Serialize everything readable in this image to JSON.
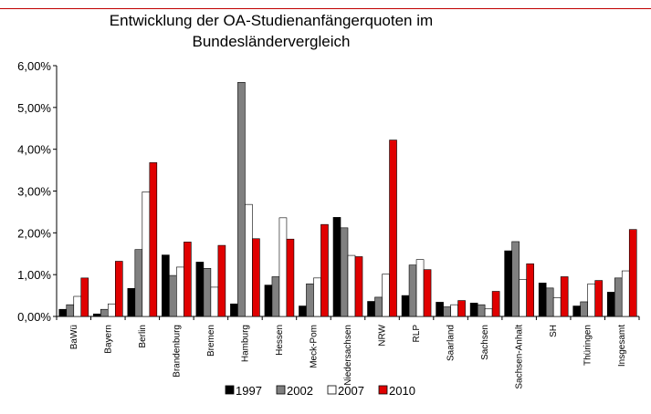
{
  "chart_data": {
    "type": "bar",
    "title": "Entwicklung der OA-Studienanfängerquoten im Bundesländervergleich",
    "title_lines": [
      "Entwicklung der OA-Studienanfängerquoten im",
      "Bundesländervergleich"
    ],
    "categories": [
      "BaWü",
      "Bayern",
      "Berlin",
      "Brandenburg",
      "Bremen",
      "Hamburg",
      "Hessen",
      "Meck-Pom",
      "Niedersachsen",
      "NRW",
      "RLP",
      "Saarland",
      "Sachsen",
      "Sachsen-Anhalt",
      "SH",
      "Thüringen",
      "Insgesamt"
    ],
    "series": [
      {
        "name": "1997",
        "color": "#000000",
        "values": [
          0.17,
          0.06,
          0.67,
          1.47,
          1.3,
          0.3,
          0.75,
          0.25,
          2.37,
          0.36,
          0.5,
          0.34,
          0.32,
          1.57,
          0.8,
          0.25,
          0.58
        ]
      },
      {
        "name": "2002",
        "color": "#808080",
        "values": [
          0.28,
          0.17,
          1.6,
          0.98,
          1.15,
          5.6,
          0.95,
          0.78,
          2.12,
          0.46,
          1.23,
          0.23,
          0.28,
          1.79,
          0.68,
          0.35,
          0.92
        ]
      },
      {
        "name": "2007",
        "color": "#ffffff",
        "values": [
          0.48,
          0.3,
          2.98,
          1.18,
          0.7,
          2.68,
          2.36,
          0.92,
          1.46,
          1.01,
          1.36,
          0.28,
          0.18,
          0.88,
          0.45,
          0.78,
          1.09
        ]
      },
      {
        "name": "2010",
        "color": "#e00000",
        "values": [
          0.92,
          1.32,
          3.68,
          1.78,
          1.7,
          1.86,
          1.85,
          2.2,
          1.43,
          4.22,
          1.12,
          0.38,
          0.6,
          1.26,
          0.95,
          0.86,
          2.08
        ]
      }
    ],
    "yticks": [
      "0,00%",
      "1,00%",
      "2,00%",
      "3,00%",
      "4,00%",
      "5,00%",
      "6,00%"
    ],
    "ylim": [
      0,
      6
    ],
    "grid": false,
    "legend": "bottom",
    "xlabel": "",
    "ylabel": ""
  }
}
